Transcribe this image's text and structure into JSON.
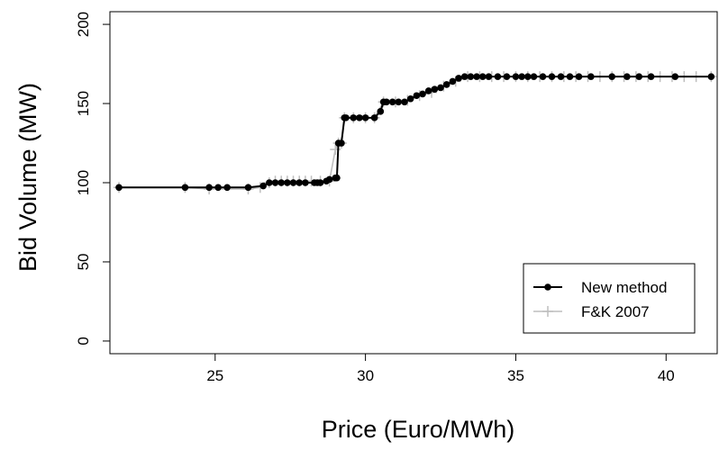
{
  "chart_data": {
    "type": "line",
    "xlabel": "Price (Euro/MWh)",
    "ylabel": "Bid Volume (MW)",
    "xlim": [
      21.5,
      41.7
    ],
    "ylim": [
      -8,
      208
    ],
    "x_ticks": [
      25,
      30,
      35,
      40
    ],
    "y_ticks": [
      0,
      50,
      100,
      150,
      200
    ],
    "grid": false,
    "legend_position": "bottom-right",
    "series": [
      {
        "name": "New method",
        "color": "#000000",
        "marker": "filled-circle",
        "x": [
          21.8,
          24.0,
          24.8,
          25.1,
          25.4,
          26.1,
          26.6,
          26.8,
          27.0,
          27.2,
          27.4,
          27.6,
          27.8,
          28.0,
          28.3,
          28.4,
          28.5,
          28.7,
          28.8,
          29.0,
          29.05,
          29.1,
          29.2,
          29.3,
          29.35,
          29.6,
          29.8,
          30.0,
          30.3,
          30.5,
          30.6,
          30.7,
          30.9,
          31.1,
          31.3,
          31.5,
          31.7,
          31.9,
          32.1,
          32.3,
          32.5,
          32.7,
          32.9,
          33.1,
          33.3,
          33.5,
          33.7,
          33.9,
          34.1,
          34.4,
          34.7,
          35.0,
          35.2,
          35.4,
          35.6,
          35.9,
          36.2,
          36.5,
          36.8,
          37.1,
          37.5,
          38.2,
          38.7,
          39.1,
          39.5,
          40.3,
          41.5
        ],
        "y": [
          97,
          97,
          97,
          97,
          97,
          97,
          98,
          100,
          100,
          100,
          100,
          100,
          100,
          100,
          100,
          100,
          100,
          101,
          102,
          103,
          103,
          125,
          125,
          141,
          141,
          141,
          141,
          141,
          141,
          145,
          151,
          151,
          151,
          151,
          151,
          153,
          155,
          156,
          158,
          159,
          160,
          162,
          164,
          166,
          167,
          167,
          167,
          167,
          167,
          167,
          167,
          167,
          167,
          167,
          167,
          167,
          167,
          167,
          167,
          167,
          167,
          167,
          167,
          167,
          167,
          167,
          167
        ]
      },
      {
        "name": "F&K 2007",
        "color": "#bebebe",
        "marker": "plus",
        "x": [
          21.8,
          24.0,
          24.8,
          26.1,
          26.5,
          26.8,
          27.0,
          27.2,
          27.4,
          27.6,
          27.8,
          28.0,
          28.2,
          28.5,
          28.8,
          29.0,
          29.1,
          29.2,
          29.3,
          29.6,
          30.0,
          30.3,
          30.6,
          31.0,
          31.4,
          31.8,
          32.2,
          32.6,
          33.0,
          33.4,
          33.8,
          34.2,
          34.6,
          35.0,
          35.4,
          35.8,
          36.2,
          36.6,
          37.0,
          37.4,
          37.8,
          38.2,
          38.6,
          39.0,
          39.4,
          39.8,
          40.2,
          40.6,
          41.0,
          41.5
        ],
        "y": [
          97,
          97,
          96,
          96,
          97,
          100,
          101,
          101,
          101,
          101,
          101,
          101,
          101,
          101,
          101,
          121,
          125,
          125,
          141,
          141,
          141,
          141,
          151,
          151,
          152,
          155,
          157,
          161,
          164,
          167,
          167,
          167,
          167,
          167,
          167,
          167,
          167,
          167,
          167,
          167,
          167,
          167,
          167,
          167,
          167,
          167,
          167,
          167,
          167,
          167
        ]
      }
    ]
  }
}
